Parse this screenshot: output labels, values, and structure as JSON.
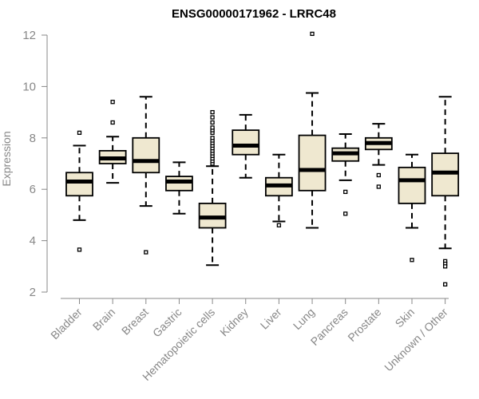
{
  "chart_data": {
    "type": "boxplot",
    "title": "ENSG00000171962 - LRRC48",
    "xlabel": "",
    "ylabel": "Expression",
    "ylim": [
      2,
      12
    ],
    "yticks": [
      2,
      4,
      6,
      8,
      10,
      12
    ],
    "box_fill": "#efe8d0",
    "categories": [
      "Bladder",
      "Brain",
      "Breast",
      "Gastric",
      "Hematopoietic cells",
      "Kidney",
      "Liver",
      "Lung",
      "Pancreas",
      "Prostate",
      "Skin",
      "Unknown / Other"
    ],
    "boxes": [
      {
        "name": "Bladder",
        "whisker_low": 4.8,
        "q1": 5.75,
        "median": 6.3,
        "q3": 6.65,
        "whisker_high": 7.7,
        "outliers": [
          8.2,
          3.65
        ]
      },
      {
        "name": "Brain",
        "whisker_low": 6.25,
        "q1": 7.0,
        "median": 7.2,
        "q3": 7.5,
        "whisker_high": 8.05,
        "outliers": [
          8.6,
          9.4
        ]
      },
      {
        "name": "Breast",
        "whisker_low": 5.35,
        "q1": 6.65,
        "median": 7.1,
        "q3": 8.0,
        "whisker_high": 9.6,
        "outliers": [
          3.55
        ]
      },
      {
        "name": "Gastric",
        "whisker_low": 5.05,
        "q1": 5.95,
        "median": 6.3,
        "q3": 6.5,
        "whisker_high": 7.05,
        "outliers": []
      },
      {
        "name": "Hematopoietic cells",
        "whisker_low": 3.05,
        "q1": 4.5,
        "median": 4.9,
        "q3": 5.45,
        "whisker_high": 6.9,
        "outliers": [
          7.0,
          7.1,
          7.2,
          7.3,
          7.4,
          7.5,
          7.6,
          7.7,
          7.8,
          7.9,
          8.0,
          8.2,
          8.3,
          8.4,
          8.6,
          8.8,
          9.0
        ]
      },
      {
        "name": "Kidney",
        "whisker_low": 6.45,
        "q1": 7.35,
        "median": 7.7,
        "q3": 8.3,
        "whisker_high": 8.9,
        "outliers": []
      },
      {
        "name": "Liver",
        "whisker_low": 4.75,
        "q1": 5.75,
        "median": 6.15,
        "q3": 6.45,
        "whisker_high": 7.35,
        "outliers": [
          4.6
        ]
      },
      {
        "name": "Lung",
        "whisker_low": 4.5,
        "q1": 5.95,
        "median": 6.75,
        "q3": 8.1,
        "whisker_high": 9.75,
        "outliers": [
          12.05
        ]
      },
      {
        "name": "Pancreas",
        "whisker_low": 6.35,
        "q1": 7.1,
        "median": 7.4,
        "q3": 7.6,
        "whisker_high": 8.15,
        "outliers": [
          5.9,
          5.05
        ]
      },
      {
        "name": "Prostate",
        "whisker_low": 6.95,
        "q1": 7.55,
        "median": 7.8,
        "q3": 8.0,
        "whisker_high": 8.55,
        "outliers": [
          6.55,
          6.1
        ]
      },
      {
        "name": "Skin",
        "whisker_low": 4.5,
        "q1": 5.45,
        "median": 6.35,
        "q3": 6.85,
        "whisker_high": 7.35,
        "outliers": [
          3.25
        ]
      },
      {
        "name": "Unknown / Other",
        "whisker_low": 3.7,
        "q1": 5.75,
        "median": 6.65,
        "q3": 7.4,
        "whisker_high": 9.6,
        "outliers": [
          3.2,
          3.1,
          3.0,
          2.3
        ]
      }
    ]
  }
}
